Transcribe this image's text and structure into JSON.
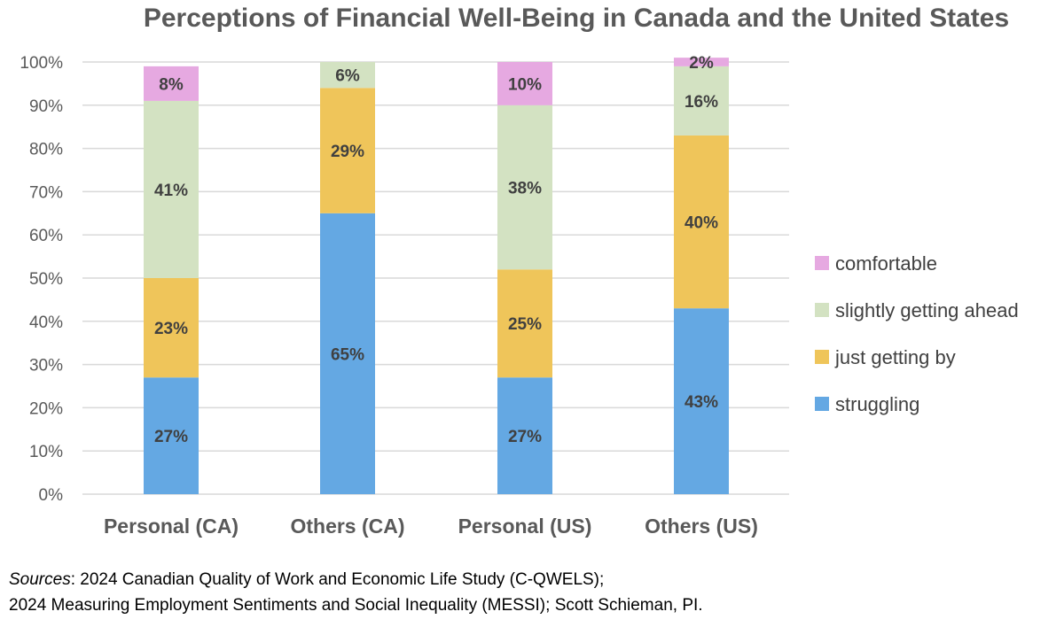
{
  "chart_data": {
    "type": "bar",
    "stacked": true,
    "title": "Perceptions of Financial Well-Being in Canada and the United States",
    "categories": [
      "Personal (CA)",
      "Others (CA)",
      "Personal (US)",
      "Others (US)"
    ],
    "series": [
      {
        "name": "struggling",
        "values": [
          27,
          65,
          27,
          43
        ],
        "labels": [
          "27%",
          "65%",
          "27%",
          "43%"
        ],
        "color": "#64A8E3"
      },
      {
        "name": "just getting by",
        "values": [
          23,
          29,
          25,
          40
        ],
        "labels": [
          "23%",
          "29%",
          "25%",
          "40%"
        ],
        "color": "#EFC55A"
      },
      {
        "name": "slightly getting ahead",
        "values": [
          41,
          6,
          38,
          16
        ],
        "labels": [
          "41%",
          "6%",
          "38%",
          "16%"
        ],
        "color": "#D3E2C2"
      },
      {
        "name": "comfortable",
        "values": [
          8,
          0,
          10,
          2
        ],
        "labels": [
          "8%",
          "",
          "10%",
          "2%"
        ],
        "color": "#E6A9E1"
      }
    ],
    "y_ticks": [
      "0%",
      "10%",
      "20%",
      "30%",
      "40%",
      "50%",
      "60%",
      "70%",
      "80%",
      "90%",
      "100%"
    ],
    "ylim": [
      0,
      100
    ],
    "grid": true,
    "legend_position": "right"
  },
  "sources": {
    "label": "Sources",
    "line1": ": 2024 Canadian Quality of Work and Economic Life Study (C-QWELS);",
    "line2": "2024 Measuring Employment Sentiments and Social Inequality (MESSI); Scott Schieman, PI."
  }
}
